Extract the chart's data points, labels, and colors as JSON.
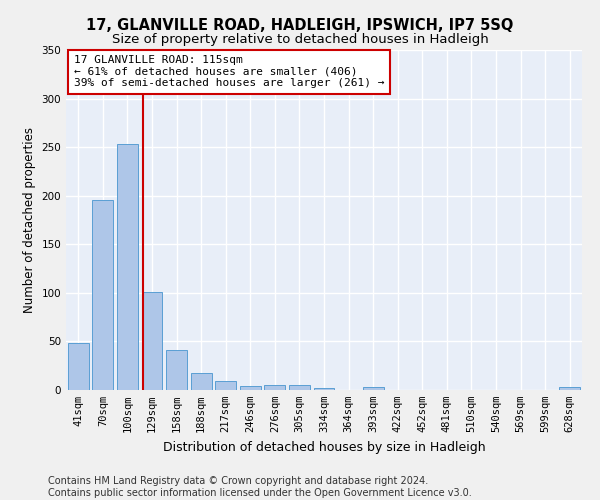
{
  "title": "17, GLANVILLE ROAD, HADLEIGH, IPSWICH, IP7 5SQ",
  "subtitle": "Size of property relative to detached houses in Hadleigh",
  "xlabel": "Distribution of detached houses by size in Hadleigh",
  "ylabel": "Number of detached properties",
  "categories": [
    "41sqm",
    "70sqm",
    "100sqm",
    "129sqm",
    "158sqm",
    "188sqm",
    "217sqm",
    "246sqm",
    "276sqm",
    "305sqm",
    "334sqm",
    "364sqm",
    "393sqm",
    "422sqm",
    "452sqm",
    "481sqm",
    "510sqm",
    "540sqm",
    "569sqm",
    "599sqm",
    "628sqm"
  ],
  "values": [
    48,
    196,
    253,
    101,
    41,
    18,
    9,
    4,
    5,
    5,
    2,
    0,
    3,
    0,
    0,
    0,
    0,
    0,
    0,
    0,
    3
  ],
  "bar_color": "#aec6e8",
  "bar_edge_color": "#5a9fd4",
  "vline_x": 2.65,
  "vline_color": "#cc0000",
  "annotation_text": "17 GLANVILLE ROAD: 115sqm\n← 61% of detached houses are smaller (406)\n39% of semi-detached houses are larger (261) →",
  "annotation_box_color": "#ffffff",
  "annotation_box_edge": "#cc0000",
  "ylim": [
    0,
    350
  ],
  "background_color": "#e8eef8",
  "grid_color": "#ffffff",
  "footer_text": "Contains HM Land Registry data © Crown copyright and database right 2024.\nContains public sector information licensed under the Open Government Licence v3.0.",
  "title_fontsize": 10.5,
  "subtitle_fontsize": 9.5,
  "xlabel_fontsize": 9,
  "ylabel_fontsize": 8.5,
  "tick_fontsize": 7.5,
  "footer_fontsize": 7,
  "annot_fontsize": 8
}
